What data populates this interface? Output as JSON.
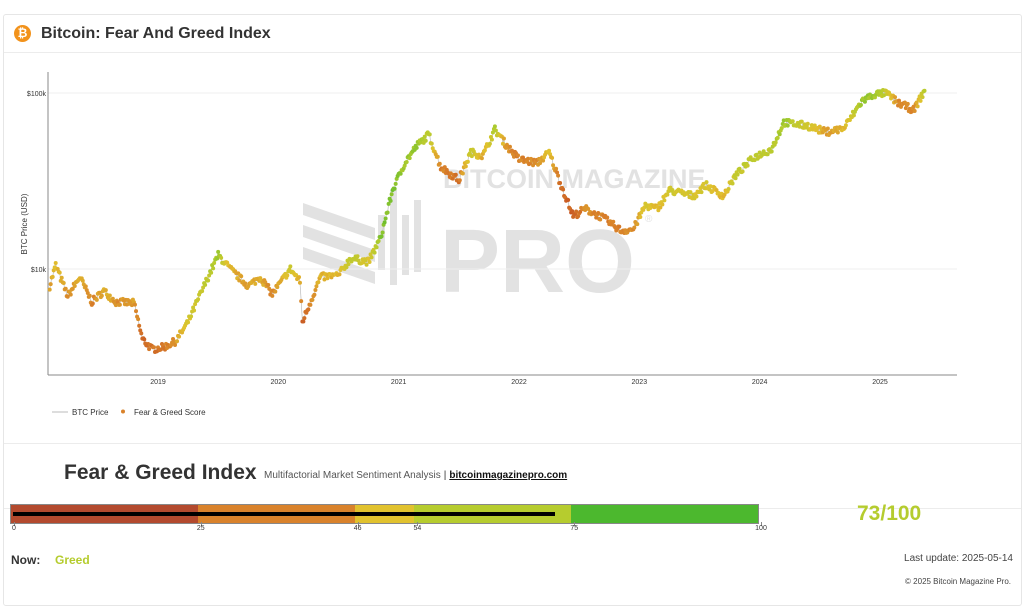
{
  "header": {
    "title": "Bitcoin: Fear And Greed Index",
    "icon": "bitcoin-icon",
    "icon_glyph": "₿"
  },
  "watermark": {
    "line1": "BITCOIN MAGAZINE",
    "line2": "PRO",
    "mark": "®"
  },
  "chart_data": {
    "type": "scatter",
    "ylabel": "BTC Price (USD)",
    "yscale": "log",
    "ylim": [
      2500,
      131000
    ],
    "xlim": [
      "2018-02",
      "2025-08"
    ],
    "yticks": [
      {
        "value": 10000,
        "label": "$10k"
      },
      {
        "value": 100000,
        "label": "$100k"
      }
    ],
    "xticks": [
      "2019",
      "2020",
      "2021",
      "2022",
      "2023",
      "2024",
      "2025"
    ],
    "grid": true,
    "legend_position": "bottom-left",
    "legend": [
      {
        "name": "BTC Price",
        "kind": "line",
        "color": "#bbbbbb"
      },
      {
        "name": "Fear & Greed Score",
        "kind": "dot",
        "color": "#d9822b"
      }
    ],
    "color_scale": [
      "#c0471f",
      "#d9822b",
      "#e1c22e",
      "#b5cc2e",
      "#4cb82e"
    ],
    "series": [
      {
        "name": "Fear & Greed Score",
        "points": [
          [
            2018.1,
            8000,
            35
          ],
          [
            2018.15,
            10500,
            50
          ],
          [
            2018.25,
            7000,
            30
          ],
          [
            2018.35,
            9000,
            45
          ],
          [
            2018.45,
            6500,
            25
          ],
          [
            2018.55,
            7500,
            45
          ],
          [
            2018.65,
            6500,
            30
          ],
          [
            2018.8,
            6400,
            35
          ],
          [
            2018.87,
            4000,
            15
          ],
          [
            2018.95,
            3500,
            20
          ],
          [
            2019.05,
            3600,
            20
          ],
          [
            2019.15,
            3900,
            35
          ],
          [
            2019.25,
            5000,
            55
          ],
          [
            2019.4,
            8500,
            70
          ],
          [
            2019.5,
            12000,
            80
          ],
          [
            2019.6,
            10000,
            45
          ],
          [
            2019.75,
            8000,
            35
          ],
          [
            2019.85,
            9000,
            45
          ],
          [
            2019.95,
            7200,
            25
          ],
          [
            2020.1,
            10000,
            60
          ],
          [
            2020.18,
            8500,
            40
          ],
          [
            2020.2,
            5000,
            12
          ],
          [
            2020.35,
            9000,
            45
          ],
          [
            2020.5,
            9200,
            45
          ],
          [
            2020.6,
            11500,
            70
          ],
          [
            2020.75,
            11000,
            55
          ],
          [
            2020.85,
            15000,
            85
          ],
          [
            2020.95,
            28000,
            90
          ],
          [
            2021.05,
            40000,
            80
          ],
          [
            2021.15,
            50000,
            80
          ],
          [
            2021.25,
            58000,
            70
          ],
          [
            2021.35,
            38000,
            25
          ],
          [
            2021.5,
            32000,
            20
          ],
          [
            2021.6,
            46000,
            65
          ],
          [
            2021.7,
            44000,
            40
          ],
          [
            2021.8,
            62000,
            75
          ],
          [
            2021.9,
            50000,
            30
          ],
          [
            2022.0,
            42000,
            25
          ],
          [
            2022.15,
            40000,
            30
          ],
          [
            2022.25,
            46000,
            50
          ],
          [
            2022.35,
            30000,
            15
          ],
          [
            2022.45,
            20000,
            10
          ],
          [
            2022.55,
            22000,
            30
          ],
          [
            2022.7,
            19500,
            25
          ],
          [
            2022.85,
            16500,
            25
          ],
          [
            2022.95,
            16800,
            30
          ],
          [
            2023.05,
            23000,
            55
          ],
          [
            2023.15,
            22000,
            45
          ],
          [
            2023.25,
            28000,
            60
          ],
          [
            2023.45,
            26000,
            55
          ],
          [
            2023.55,
            30000,
            55
          ],
          [
            2023.7,
            26000,
            45
          ],
          [
            2023.8,
            34000,
            65
          ],
          [
            2023.95,
            43000,
            70
          ],
          [
            2024.1,
            48000,
            70
          ],
          [
            2024.2,
            68000,
            80
          ],
          [
            2024.4,
            65000,
            60
          ],
          [
            2024.55,
            60000,
            35
          ],
          [
            2024.7,
            63000,
            45
          ],
          [
            2024.85,
            90000,
            80
          ],
          [
            2024.95,
            98000,
            80
          ],
          [
            2025.05,
            100000,
            65
          ],
          [
            2025.15,
            88000,
            30
          ],
          [
            2025.28,
            80000,
            25
          ],
          [
            2025.37,
            103000,
            73
          ]
        ]
      }
    ]
  },
  "summary": {
    "title": "Fear & Greed Index",
    "subtitle": "Multifactorial Market Sentiment Analysis",
    "separator": "|",
    "link": "bitcoinmagazinepro.com"
  },
  "gauge": {
    "value": 73,
    "max": 100,
    "segments": [
      {
        "from": 0,
        "to": 25,
        "color": "#b34a2e"
      },
      {
        "from": 25,
        "to": 46,
        "color": "#d9822b"
      },
      {
        "from": 46,
        "to": 54,
        "color": "#e1c22e"
      },
      {
        "from": 54,
        "to": 75,
        "color": "#b6cc2e"
      },
      {
        "from": 75,
        "to": 100,
        "color": "#4cb82e"
      }
    ],
    "ticks": [
      "0",
      "25",
      "46",
      "54",
      "75",
      "100"
    ],
    "score_text": "73/100"
  },
  "status": {
    "now_label": "Now:",
    "now_value": "Greed",
    "last_update": "Last update: 2025-05-14",
    "copyright": "© 2025 Bitcoin Magazine Pro."
  }
}
